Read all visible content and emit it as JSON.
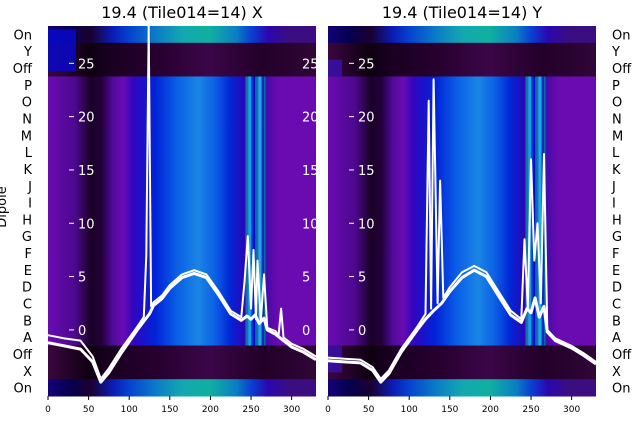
{
  "chart_data": [
    {
      "type": "heatmap",
      "title": "19.4 (Tile014=14) X",
      "ylabel": "Dipole",
      "xlim": [
        0,
        330
      ],
      "xticks": [
        0,
        50,
        100,
        150,
        200,
        250,
        300
      ],
      "overlay_yticks": [
        25,
        20,
        15,
        10,
        5,
        0
      ],
      "overlay_ylim": [
        -6.2,
        28.5
      ],
      "row_labels": [
        "On",
        "Y",
        "Off",
        "P",
        "O",
        "N",
        "M",
        "L",
        "K",
        "J",
        "I",
        "H",
        "G",
        "F",
        "E",
        "D",
        "C",
        "B",
        "A",
        "Off",
        "X",
        "On"
      ],
      "series": [
        {
          "x": [
            0,
            20,
            40,
            55,
            65,
            75,
            90,
            110,
            118,
            121,
            124,
            127,
            130,
            140,
            150,
            165,
            180,
            195,
            210,
            225,
            238,
            242,
            246,
            250,
            253,
            256,
            258,
            262,
            266,
            270,
            280,
            284,
            287,
            290,
            300,
            315,
            330
          ],
          "y": [
            -0.5,
            -0.8,
            -1.0,
            -2.5,
            -4.6,
            -3.6,
            -1.8,
            0.3,
            1.2,
            7.0,
            28.5,
            2.2,
            2.6,
            3.2,
            4.2,
            5.2,
            5.6,
            5.2,
            3.6,
            1.8,
            1.2,
            4.5,
            8.8,
            2.0,
            7.5,
            1.0,
            6.5,
            0.8,
            5.2,
            0.2,
            -0.1,
            -0.5,
            2.0,
            -0.7,
            -1.3,
            -1.8,
            -2.5
          ]
        },
        {
          "x": [
            0,
            20,
            40,
            55,
            65,
            75,
            90,
            110,
            118,
            125,
            130,
            140,
            150,
            165,
            180,
            195,
            210,
            225,
            238,
            245,
            250,
            255,
            260,
            266,
            270,
            280,
            300,
            315,
            330
          ],
          "y": [
            -1.2,
            -1.5,
            -1.8,
            -3.0,
            -4.9,
            -4.0,
            -2.2,
            0.0,
            0.8,
            1.5,
            2.3,
            2.9,
            3.9,
            4.9,
            5.3,
            4.9,
            3.3,
            1.5,
            0.9,
            1.3,
            1.0,
            1.4,
            0.6,
            1.1,
            0.0,
            -0.4,
            -1.6,
            -2.1,
            -2.8
          ]
        }
      ]
    },
    {
      "type": "heatmap",
      "title": "19.4 (Tile014=14) Y",
      "xlim": [
        0,
        330
      ],
      "xticks": [
        0,
        50,
        100,
        150,
        200,
        250,
        300
      ],
      "overlay_yticks": [
        25,
        20,
        15,
        10,
        5,
        0
      ],
      "overlay_ylim": [
        -6.2,
        28.5
      ],
      "row_labels": [
        "On",
        "Y",
        "Off",
        "P",
        "O",
        "N",
        "M",
        "L",
        "K",
        "J",
        "I",
        "H",
        "G",
        "F",
        "E",
        "D",
        "C",
        "B",
        "A",
        "Off",
        "X",
        "On"
      ],
      "series": [
        {
          "x": [
            0,
            20,
            40,
            55,
            65,
            75,
            90,
            110,
            120,
            124,
            127,
            130,
            135,
            138,
            142,
            150,
            165,
            180,
            195,
            210,
            225,
            238,
            242,
            246,
            250,
            254,
            258,
            262,
            266,
            270,
            280,
            300,
            315,
            330
          ],
          "y": [
            -2.6,
            -2.7,
            -2.8,
            -3.5,
            -4.6,
            -3.8,
            -1.8,
            0.3,
            1.5,
            21.5,
            2.0,
            23.5,
            2.5,
            14.0,
            3.0,
            4.0,
            5.4,
            6.0,
            5.4,
            3.6,
            1.8,
            1.0,
            8.5,
            2.0,
            16.0,
            6.5,
            10.0,
            2.5,
            16.5,
            0.0,
            -0.8,
            -1.5,
            -2.2,
            -3.0
          ]
        },
        {
          "x": [
            0,
            20,
            40,
            55,
            65,
            75,
            90,
            110,
            120,
            130,
            140,
            150,
            165,
            180,
            195,
            210,
            225,
            238,
            245,
            250,
            255,
            260,
            266,
            270,
            280,
            300,
            315,
            330
          ],
          "y": [
            -2.9,
            -3.0,
            -3.1,
            -3.8,
            -4.9,
            -4.1,
            -2.1,
            0.0,
            1.0,
            1.8,
            2.5,
            3.6,
            4.9,
            5.6,
            5.0,
            3.2,
            1.4,
            0.7,
            2.0,
            1.6,
            3.0,
            1.2,
            2.2,
            -0.2,
            -1.0,
            -1.7,
            -2.4,
            -3.2
          ]
        }
      ]
    }
  ]
}
